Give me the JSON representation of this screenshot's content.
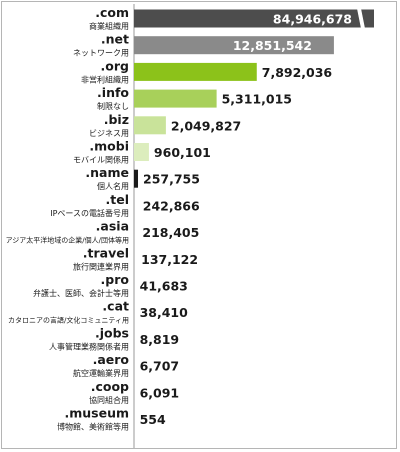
{
  "chart_data": {
    "type": "bar",
    "orientation": "horizontal",
    "break_after_value": 13500000,
    "categories": [
      ".com",
      ".net",
      ".org",
      ".info",
      ".biz",
      ".mobi",
      ".name",
      ".tel",
      ".asia",
      ".travel",
      ".pro",
      ".cat",
      ".jobs",
      ".aero",
      ".coop",
      ".museum"
    ],
    "descriptions": [
      "商業組織用",
      "ネットワーク用",
      "非営利組織用",
      "制限なし",
      "ビジネス用",
      "モバイル関係用",
      "個人名用",
      "IPベースの電話番号用",
      "アジア太平洋地域の企業/個人/団体等用",
      "旅行関連業界用",
      "弁護士、医師、会計士等用",
      "カタロニアの言語/文化コミュニティ用",
      "人事管理業務関係者用",
      "航空運輸業界用",
      "協同組合用",
      "博物館、美術館等用"
    ],
    "values": [
      84946678,
      12851542,
      7892036,
      5311015,
      2049827,
      960101,
      257755,
      242866,
      218405,
      137122,
      41683,
      38410,
      8819,
      6707,
      6091,
      554
    ],
    "value_labels": [
      "84,946,678",
      "12,851,542",
      "7,892,036",
      "5,311,015",
      "2,049,827",
      "960,101",
      "257,755",
      "242,866",
      "218,405",
      "137,122",
      "41,683",
      "38,410",
      "8,819",
      "6,707",
      "6,091",
      "554"
    ],
    "bar_colors": [
      "#4d4d4d",
      "#8a8a8a",
      "#8cc21a",
      "#a8d05a",
      "#c9e39a",
      "#dcedbd",
      "#1a1a1a",
      "#ffffff",
      "#ffffff",
      "#ffffff",
      "#ffffff",
      "#ffffff",
      "#ffffff",
      "#ffffff",
      "#ffffff",
      "#ffffff"
    ],
    "label_inside": [
      true,
      true,
      false,
      false,
      false,
      false,
      false,
      false,
      false,
      false,
      false,
      false,
      false,
      false,
      false,
      false
    ],
    "title": "",
    "xlabel": "",
    "ylabel": "",
    "grid": false,
    "legend": "none"
  }
}
